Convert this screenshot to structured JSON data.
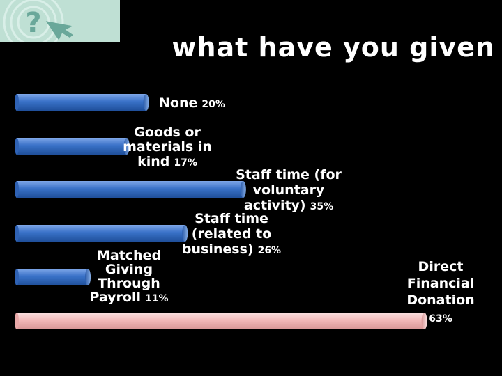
{
  "title": "what have you given",
  "chart_data": {
    "type": "bar",
    "orientation": "horizontal",
    "categories": [
      "None",
      "Goods or materials in kind",
      "Staff time (for voluntary activity)",
      "Staff time (related to business)",
      "Matched Giving Through Payroll",
      "Direct Financial Donation"
    ],
    "values": [
      20,
      17,
      35,
      26,
      11,
      63
    ],
    "value_labels": [
      "20%",
      "17%",
      "35%",
      "26%",
      "11%",
      "63%"
    ],
    "label_lines": [
      [
        "None"
      ],
      [
        "Goods or",
        "materials in",
        "kind"
      ],
      [
        "Staff time (for",
        "voluntary",
        "activity)"
      ],
      [
        "Staff time",
        "(related to",
        "business)"
      ],
      [
        "Matched",
        "Giving",
        "Through",
        "Payroll"
      ],
      [
        "Direct",
        "Financial",
        "Donation"
      ]
    ],
    "colors": [
      "#3a72c8",
      "#3a72c8",
      "#3a72c8",
      "#3a72c8",
      "#3a72c8",
      "#f3b9b9"
    ],
    "xlim": [
      0,
      65
    ],
    "grid": false,
    "legend": "none"
  }
}
